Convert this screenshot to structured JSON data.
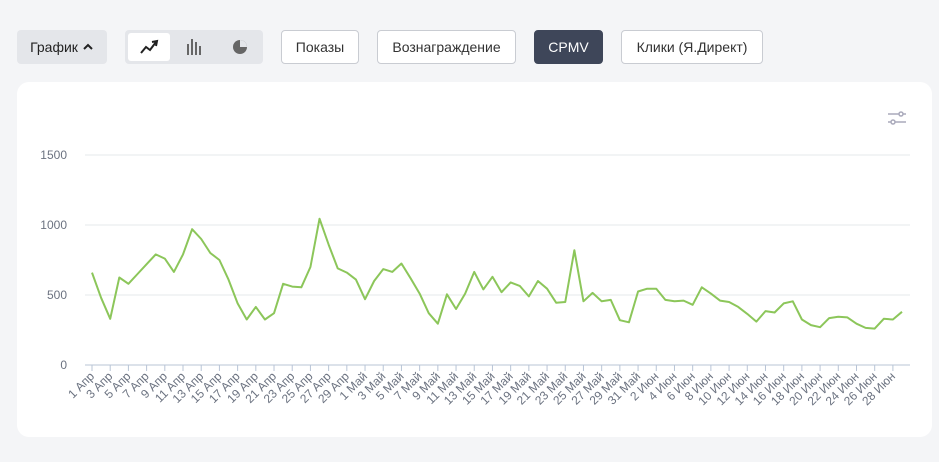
{
  "toolbar": {
    "mode": "График",
    "buttons": [
      "Показы",
      "Вознаграждение",
      "CPMV",
      "Клики (Я.Директ)"
    ],
    "active": 2
  },
  "chart_data": {
    "type": "line",
    "color": "#8cc65a",
    "grid": true,
    "ylim": [
      0,
      1500
    ],
    "yticks": [
      0,
      500,
      1000,
      1500
    ],
    "categories": [
      "1 Апр",
      null,
      "3 Апр",
      null,
      "5 Апр",
      null,
      "7 Апр",
      null,
      "9 Апр",
      null,
      "11 Апр",
      null,
      "13 Апр",
      null,
      "15 Апр",
      null,
      "17 Апр",
      null,
      "19 Апр",
      null,
      "21 Апр",
      null,
      "23 Апр",
      null,
      "25 Апр",
      null,
      "27 Апр",
      null,
      "29 Апр",
      null,
      "1 Май",
      null,
      "3 Май",
      null,
      "5 Май",
      null,
      "7 Май",
      null,
      "9 Май",
      null,
      "11 Май",
      null,
      "13 Май",
      null,
      "15 Май",
      null,
      "17 Май",
      null,
      "19 Май",
      null,
      "21 Май",
      null,
      "23 Май",
      null,
      "25 Май",
      null,
      "27 Май",
      null,
      "29 Май",
      null,
      "31 Май",
      null,
      "2 Июн",
      null,
      "4 Июн",
      null,
      "6 Июн",
      null,
      "8 Июн",
      null,
      "10 Июн",
      null,
      "12 Июн",
      null,
      "14 Июн",
      null,
      "16 Июн",
      null,
      "18 Июн",
      null,
      "20 Июн",
      null,
      "22 Июн",
      null,
      "24 Июн",
      null,
      "26 Июн",
      null,
      "28 Июн",
      null
    ],
    "values": [
      660,
      480,
      330,
      625,
      580,
      650,
      720,
      790,
      760,
      665,
      790,
      970,
      900,
      800,
      750,
      610,
      440,
      325,
      415,
      325,
      370,
      580,
      560,
      555,
      700,
      1045,
      860,
      690,
      660,
      610,
      470,
      600,
      685,
      665,
      725,
      620,
      510,
      370,
      295,
      505,
      400,
      510,
      665,
      540,
      630,
      520,
      590,
      565,
      490,
      600,
      545,
      445,
      450,
      820,
      455,
      515,
      455,
      465,
      320,
      305,
      525,
      545,
      545,
      465,
      455,
      460,
      430,
      555,
      510,
      460,
      450,
      415,
      365,
      310,
      385,
      375,
      440,
      455,
      325,
      285,
      270,
      335,
      345,
      340,
      295,
      265,
      260,
      330,
      325,
      380
    ]
  }
}
